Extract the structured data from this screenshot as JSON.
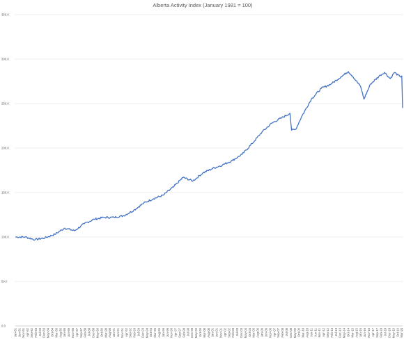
{
  "chart_data": {
    "type": "line",
    "title": "Alberta Activity Index (January 1981 = 100)",
    "xlabel": "",
    "ylabel": "",
    "ylim": [
      0,
      350
    ],
    "yticks": [
      "0.0",
      "50.0",
      "100.0",
      "150.0",
      "200.0",
      "250.0",
      "300.0",
      "350.0"
    ],
    "grid": true,
    "legend": "none",
    "line_color": "#4472c4",
    "x_tick_labels": [
      "Jan-81",
      "Jun-81",
      "Nov-81",
      "Apr-82",
      "Sep-82",
      "Feb-83",
      "Jul-83",
      "Dec-83",
      "May-84",
      "Oct-84",
      "Mar-85",
      "Aug-85",
      "Jan-86",
      "Jun-86",
      "Nov-86",
      "Apr-87",
      "Sep-87",
      "Feb-88",
      "Jul-88",
      "Dec-88",
      "May-89",
      "Oct-89",
      "Mar-90",
      "Aug-90",
      "Jan-91",
      "Jun-91",
      "Nov-91",
      "Apr-92",
      "Sep-92",
      "Feb-93",
      "Jul-93",
      "Dec-93",
      "May-94",
      "Oct-94",
      "Mar-95",
      "Aug-95",
      "Jan-96",
      "Jun-96",
      "Nov-96",
      "Apr-97",
      "Sep-97",
      "Feb-98",
      "Jul-98",
      "Dec-98",
      "May-99",
      "Oct-99",
      "Mar-00",
      "Aug-00",
      "Jan-01",
      "Jun-01",
      "Nov-01",
      "Apr-02",
      "Sep-02",
      "Feb-03",
      "Jul-03",
      "Dec-03",
      "May-04",
      "Oct-04",
      "Mar-05",
      "Aug-05",
      "Jan-06",
      "Jun-06",
      "Nov-06",
      "Apr-07",
      "Sep-07",
      "Feb-08",
      "Jul-08",
      "Dec-08",
      "May-09",
      "Oct-09",
      "Mar-10",
      "Aug-10",
      "Jan-11",
      "Jun-11",
      "Nov-11",
      "Apr-12",
      "Sep-12",
      "Feb-13",
      "Jul-13",
      "Dec-13",
      "May-14",
      "Oct-14",
      "Mar-15",
      "Aug-15",
      "Jan-16",
      "Jun-16",
      "Nov-16",
      "Apr-17",
      "Sep-17",
      "Feb-18",
      "Jul-18",
      "Dec-18",
      "May-19",
      "Oct-19",
      "Mar-20"
    ],
    "x": [
      "Jan-81",
      "Jan-82",
      "Jan-83",
      "Jan-84",
      "Jan-85",
      "Jan-86",
      "Jan-87",
      "Jan-88",
      "Jan-89",
      "Jan-90",
      "Jan-91",
      "Jan-92",
      "Jan-93",
      "Jan-94",
      "Jan-95",
      "Jan-96",
      "Jan-97",
      "Jan-98",
      "Jan-99",
      "Jan-00",
      "Jan-01",
      "Jan-02",
      "Jan-03",
      "Jan-04",
      "Jan-05",
      "Jan-06",
      "Jan-07",
      "Jan-08",
      "Nov-08",
      "Jan-09",
      "Jun-09",
      "Jan-10",
      "Jan-11",
      "Jan-12",
      "Jan-13",
      "Jan-14",
      "Oct-14",
      "Mar-15",
      "Jan-16",
      "May-16",
      "Jan-17",
      "Jan-18",
      "Jun-18",
      "Jan-19",
      "Jun-19",
      "Jan-20",
      "Mar-20",
      "Apr-20"
    ],
    "series": [
      {
        "values": [
          100,
          100,
          97,
          99,
          103,
          110,
          107,
          115,
          120,
          122,
          122,
          124,
          130,
          138,
          143,
          147,
          156,
          167,
          163,
          172,
          177,
          181,
          186,
          193,
          205,
          218,
          228,
          234,
          239,
          220,
          221,
          235,
          255,
          267,
          272,
          280,
          286,
          281,
          269,
          255,
          272,
          282,
          285,
          278,
          285,
          280,
          281,
          245
        ]
      }
    ]
  }
}
